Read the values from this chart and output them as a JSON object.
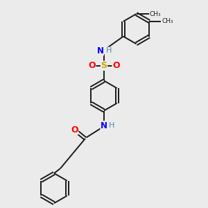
{
  "bg_color": "#ebebeb",
  "bond_color": "#1a1a1a",
  "N_color": "#0000ff",
  "O_color": "#ff0000",
  "S_color": "#ccaa00",
  "H_color": "#5588aa",
  "linewidth": 1.4,
  "figsize": [
    3.0,
    3.0
  ],
  "dpi": 100,
  "xlim": [
    0,
    10
  ],
  "ylim": [
    0,
    10
  ]
}
